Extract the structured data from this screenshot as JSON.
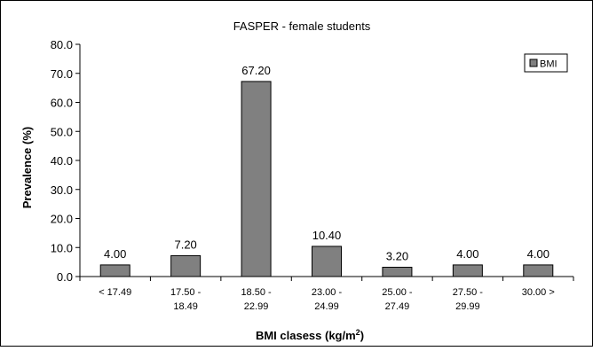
{
  "chart_data": {
    "type": "bar",
    "title": "FASPER - female students",
    "xlabel": "BMI clasess (kg/m",
    "xlabel_sup": "2",
    "xlabel_suffix": ")",
    "ylabel": "Prevalence (%)",
    "ylim": [
      0,
      80
    ],
    "yticks": [
      "0.0",
      "10.0",
      "20.0",
      "30.0",
      "40.0",
      "50.0",
      "60.0",
      "70.0",
      "80.0"
    ],
    "categories": [
      [
        "< 17.49"
      ],
      [
        "17.50 -",
        "18.49"
      ],
      [
        "18.50 -",
        "22.99"
      ],
      [
        "23.00 -",
        "24.99"
      ],
      [
        "25.00 -",
        "27.49"
      ],
      [
        "27.50 -",
        "29.99"
      ],
      [
        "30.00 >"
      ]
    ],
    "series": [
      {
        "name": "BMI",
        "values": [
          4.0,
          7.2,
          67.2,
          10.4,
          3.2,
          4.0,
          4.0
        ],
        "labels": [
          "4.00",
          "7.20",
          "67.20",
          "10.40",
          "3.20",
          "4.00",
          "4.00"
        ],
        "color": "#808080"
      }
    ],
    "grid": false,
    "legend": "top-right"
  }
}
